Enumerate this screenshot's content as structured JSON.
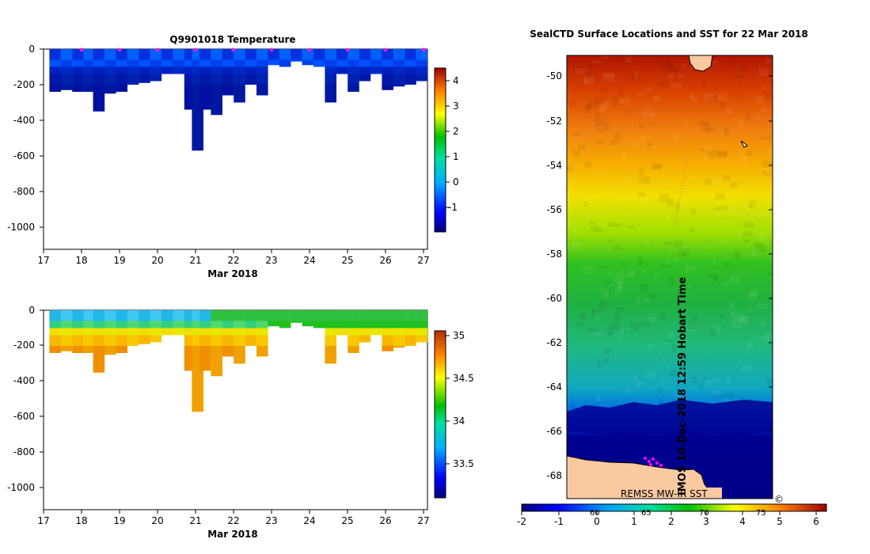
{
  "chart_data": [
    {
      "type": "heatmap",
      "title": "Q9901018  Temperature",
      "xlabel": "Mar 2018",
      "x_ticks": [
        "17",
        "18",
        "19",
        "20",
        "21",
        "22",
        "23",
        "24",
        "25",
        "26",
        "27"
      ],
      "xlim": [
        17,
        27.05
      ],
      "y_ticks": [
        "0",
        "-200",
        "-400",
        "-600",
        "-800",
        "-1000"
      ],
      "ylim": [
        -1130,
        0
      ],
      "colorbar": {
        "ticks": [
          "4",
          "3",
          "2",
          "1",
          "0",
          "-1"
        ],
        "range": [
          -2,
          4.5
        ]
      },
      "station_markers_x": [
        18,
        19,
        20,
        21,
        22,
        23,
        24,
        25,
        26,
        27
      ],
      "profiles": [
        {
          "t": 17.3,
          "depth": 240
        },
        {
          "t": 17.6,
          "depth": 230
        },
        {
          "t": 17.9,
          "depth": 240
        },
        {
          "t": 18.2,
          "depth": 240
        },
        {
          "t": 18.45,
          "depth": 350
        },
        {
          "t": 18.75,
          "depth": 250
        },
        {
          "t": 19.05,
          "depth": 240
        },
        {
          "t": 19.35,
          "depth": 200
        },
        {
          "t": 19.65,
          "depth": 190
        },
        {
          "t": 19.95,
          "depth": 180
        },
        {
          "t": 20.25,
          "depth": 140
        },
        {
          "t": 20.55,
          "depth": 140
        },
        {
          "t": 20.85,
          "depth": 340
        },
        {
          "t": 21.05,
          "depth": 570
        },
        {
          "t": 21.25,
          "depth": 340
        },
        {
          "t": 21.55,
          "depth": 370
        },
        {
          "t": 21.85,
          "depth": 260
        },
        {
          "t": 22.15,
          "depth": 300
        },
        {
          "t": 22.45,
          "depth": 200
        },
        {
          "t": 22.75,
          "depth": 260
        },
        {
          "t": 23.05,
          "depth": 90
        },
        {
          "t": 23.35,
          "depth": 100
        },
        {
          "t": 23.65,
          "depth": 70
        },
        {
          "t": 23.95,
          "depth": 90
        },
        {
          "t": 24.25,
          "depth": 100
        },
        {
          "t": 24.55,
          "depth": 300
        },
        {
          "t": 24.85,
          "depth": 140
        },
        {
          "t": 25.15,
          "depth": 240
        },
        {
          "t": 25.45,
          "depth": 180
        },
        {
          "t": 25.75,
          "depth": 140
        },
        {
          "t": 26.05,
          "depth": 230
        },
        {
          "t": 26.35,
          "depth": 210
        },
        {
          "t": 26.65,
          "depth": 200
        },
        {
          "t": 26.95,
          "depth": 180
        }
      ]
    },
    {
      "type": "heatmap",
      "title": "",
      "xlabel": "Mar 2018",
      "x_ticks": [
        "17",
        "18",
        "19",
        "20",
        "21",
        "22",
        "23",
        "24",
        "25",
        "26",
        "27"
      ],
      "xlim": [
        17,
        27.05
      ],
      "y_ticks": [
        "0",
        "-200",
        "-400",
        "-600",
        "-800",
        "-1000"
      ],
      "ylim": [
        -1130,
        0
      ],
      "colorbar": {
        "ticks": [
          "35",
          "34.5",
          "34",
          "33.5"
        ],
        "range": [
          33.1,
          35.05
        ]
      }
    },
    {
      "type": "heatmap",
      "title": "SealCTD Surface Locations and SST for 22 Mar 2018",
      "y_ticks": [
        "-50",
        "-52",
        "-54",
        "-56",
        "-58",
        "-60",
        "-62",
        "-64",
        "-66",
        "-68"
      ],
      "ylim": [
        -69,
        -49
      ],
      "x_ticks_secondary": [
        "60",
        "65",
        "70",
        "75"
      ],
      "colorbar": {
        "ticks": [
          "-2",
          "-1",
          "0",
          "1",
          "2",
          "3",
          "4",
          "5",
          "6"
        ],
        "range": [
          -2,
          6.3
        ]
      },
      "source_label": "REMSS MW-IR SST",
      "side_label": "IMOS 10-Dec-2018 12:59 Hobart Time",
      "copyright": "©"
    }
  ]
}
